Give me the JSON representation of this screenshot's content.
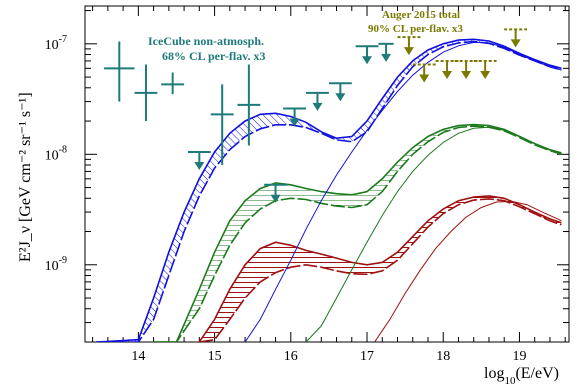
{
  "colors": {
    "blue": "#1010e0",
    "green": "#1c7a1c",
    "red": "#a01010",
    "teal": "#1f7a7a",
    "olive": "#7a7a00"
  },
  "axes": {
    "xlabel_main": "log",
    "xlabel_sub": "10",
    "xlabel_rest": "(E/eV)",
    "ylabel": "E²J_ν [GeV cm⁻² sr⁻¹ s⁻¹]",
    "xticks": [
      14,
      15,
      16,
      17,
      18,
      19
    ],
    "xtick_labels": [
      "14",
      "15",
      "16",
      "17",
      "18",
      "19"
    ],
    "ytick_labels": [
      {
        "base": "10",
        "exp": "-9",
        "value": 1e-09
      },
      {
        "base": "10",
        "exp": "-8",
        "value": 1e-08
      },
      {
        "base": "10",
        "exp": "-7",
        "value": 1e-07
      }
    ],
    "xlim": [
      13.3,
      19.65
    ],
    "ylim": [
      2e-10,
      2.2e-07
    ],
    "yscale": "log"
  },
  "annotations": {
    "icecube_line1": "IceCube non-atmosph.",
    "icecube_line2": "68% CL per-flav. x3",
    "auger_line1": "Auger 2015 total",
    "auger_line2": "90% CL per-flav. x3"
  },
  "chart_data": {
    "type": "line",
    "yscale": "log",
    "xlim": [
      13.3,
      19.65
    ],
    "ylim": [
      2e-10,
      2.2e-07
    ],
    "xlabel": "log10(E/eV)",
    "ylabel": "E^2 J_nu [GeV cm^-2 sr^-1 s^-1]",
    "series": [
      {
        "color": "blue",
        "band_upper": {
          "x": [
            13.45,
            14.0,
            14.2,
            14.4,
            14.6,
            14.8,
            15.0,
            15.2,
            15.4,
            15.6,
            15.8,
            16.0,
            16.2,
            16.4,
            16.6,
            16.8,
            17.0,
            17.2,
            17.4,
            17.6,
            17.8,
            18.0,
            18.2,
            18.4,
            18.6,
            18.8,
            19.0,
            19.2,
            19.4,
            19.55
          ],
          "y": [
            2e-10,
            2.1e-10,
            5e-10,
            1.3e-09,
            3e-09,
            6e-09,
            1.05e-08,
            1.55e-08,
            2e-08,
            2.3e-08,
            2.35e-08,
            2.2e-08,
            1.95e-08,
            1.6e-08,
            1.4e-08,
            1.45e-08,
            2e-08,
            3.2e-08,
            5e-08,
            7e-08,
            8.8e-08,
            1e-07,
            1.08e-07,
            1.1e-07,
            1.06e-07,
            9.5e-08,
            8.2e-08,
            7.2e-08,
            6.4e-08,
            6e-08
          ]
        },
        "band_lower": {
          "x": [
            13.45,
            14.0,
            14.2,
            14.4,
            14.6,
            14.8,
            15.0,
            15.2,
            15.4,
            15.6,
            15.8,
            16.0,
            16.2,
            16.4,
            16.6,
            16.8,
            17.0,
            17.2,
            17.4,
            17.6,
            17.8,
            18.0,
            18.2,
            18.4,
            18.6,
            18.8,
            19.0,
            19.2,
            19.4,
            19.55
          ],
          "y": [
            2e-10,
            2e-10,
            3.2e-10,
            8e-10,
            2e-09,
            4.2e-09,
            7.5e-09,
            1.1e-08,
            1.45e-08,
            1.7e-08,
            1.85e-08,
            1.85e-08,
            1.75e-08,
            1.55e-08,
            1.35e-08,
            1.3e-08,
            1.6e-08,
            2.6e-08,
            4.2e-08,
            6.2e-08,
            8e-08,
            9.4e-08,
            1.02e-07,
            1.05e-07,
            1.01e-07,
            9.1e-08,
            7.9e-08,
            7e-08,
            6.2e-08,
            5.8e-08
          ]
        },
        "component": {
          "x": [
            15.4,
            15.6,
            15.8,
            16.0,
            16.2,
            16.4,
            16.6,
            16.8,
            17.0,
            17.2,
            17.4,
            17.6,
            17.8,
            18.0,
            18.2,
            18.4,
            18.6,
            18.8,
            19.0,
            19.2,
            19.4,
            19.55
          ],
          "y": [
            2e-10,
            3.2e-10,
            6e-10,
            1.1e-09,
            2.1e-09,
            3.8e-09,
            6.5e-09,
            1.05e-08,
            1.65e-08,
            2.5e-08,
            3.7e-08,
            5.2e-08,
            6.8e-08,
            8.4e-08,
            9.6e-08,
            1.03e-07,
            1.02e-07,
            9.3e-08,
            8e-08,
            7e-08,
            6.2e-08,
            5.8e-08
          ]
        }
      },
      {
        "color": "green",
        "band_upper": {
          "x": [
            14.2,
            14.5,
            14.8,
            15.0,
            15.2,
            15.4,
            15.6,
            15.8,
            16.0,
            16.2,
            16.4,
            16.6,
            16.8,
            17.0,
            17.2,
            17.4,
            17.6,
            17.8,
            18.0,
            18.2,
            18.4,
            18.6,
            18.8,
            19.0,
            19.2,
            19.4,
            19.55
          ],
          "y": [
            2e-10,
            2e-10,
            6e-10,
            1.3e-09,
            2.5e-09,
            3.8e-09,
            4.9e-09,
            5.5e-09,
            5.3e-09,
            4.9e-09,
            4.6e-09,
            4.4e-09,
            4.3e-09,
            4.6e-09,
            6e-09,
            8.5e-09,
            1.15e-08,
            1.45e-08,
            1.68e-08,
            1.82e-08,
            1.86e-08,
            1.82e-08,
            1.68e-08,
            1.45e-08,
            1.25e-08,
            1.1e-08,
            1.03e-08
          ]
        },
        "band_lower": {
          "x": [
            14.2,
            14.5,
            14.8,
            15.0,
            15.2,
            15.4,
            15.6,
            15.8,
            16.0,
            16.2,
            16.4,
            16.6,
            16.8,
            17.0,
            17.2,
            17.4,
            17.6,
            17.8,
            18.0,
            18.2,
            18.4,
            18.6,
            18.8,
            19.0,
            19.2,
            19.4,
            19.55
          ],
          "y": [
            2e-10,
            2e-10,
            4e-10,
            8e-10,
            1.5e-09,
            2.4e-09,
            3.2e-09,
            3.8e-09,
            4e-09,
            3.9e-09,
            3.6e-09,
            3.4e-09,
            3.3e-09,
            3.5e-09,
            4.6e-09,
            7e-09,
            1e-08,
            1.3e-08,
            1.58e-08,
            1.75e-08,
            1.8e-08,
            1.76e-08,
            1.63e-08,
            1.42e-08,
            1.22e-08,
            1.08e-08,
            1e-08
          ]
        },
        "component": {
          "x": [
            16.2,
            16.4,
            16.6,
            16.8,
            17.0,
            17.2,
            17.4,
            17.6,
            17.8,
            18.0,
            18.2,
            18.4,
            18.6,
            18.8,
            19.0,
            19.2,
            19.4,
            19.55
          ],
          "y": [
            2e-10,
            2.8e-10,
            5e-10,
            9e-10,
            1.6e-09,
            2.8e-09,
            4.6e-09,
            7e-09,
            9.8e-09,
            1.28e-08,
            1.55e-08,
            1.72e-08,
            1.76e-08,
            1.66e-08,
            1.46e-08,
            1.25e-08,
            1.1e-08,
            1.02e-08
          ]
        }
      },
      {
        "color": "red",
        "band_upper": {
          "x": [
            14.8,
            15.0,
            15.2,
            15.4,
            15.6,
            15.8,
            16.0,
            16.2,
            16.4,
            16.6,
            16.8,
            17.0,
            17.2,
            17.4,
            17.6,
            17.8,
            18.0,
            18.2,
            18.4,
            18.6,
            18.8,
            19.0,
            19.2,
            19.4,
            19.55
          ],
          "y": [
            2e-10,
            3.2e-10,
            6e-10,
            1e-09,
            1.4e-09,
            1.6e-09,
            1.5e-09,
            1.35e-09,
            1.25e-09,
            1.15e-09,
            1.05e-09,
            1e-09,
            1.05e-09,
            1.3e-09,
            1.8e-09,
            2.5e-09,
            3.2e-09,
            3.8e-09,
            4.1e-09,
            4.2e-09,
            4e-09,
            3.5e-09,
            3e-09,
            2.6e-09,
            2.4e-09
          ]
        },
        "band_lower": {
          "x": [
            14.8,
            15.0,
            15.2,
            15.4,
            15.6,
            15.8,
            16.0,
            16.2,
            16.4,
            16.6,
            16.8,
            17.0,
            17.2,
            17.4,
            17.6,
            17.8,
            18.0,
            18.2,
            18.4,
            18.6,
            18.8,
            19.0,
            19.2,
            19.4,
            19.55
          ],
          "y": [
            2e-10,
            2.1e-10,
            3.2e-10,
            5e-10,
            7e-10,
            8.5e-10,
            9.5e-10,
            1e-09,
            9.5e-10,
            8.8e-10,
            8.3e-10,
            8.2e-10,
            8.8e-10,
            1.1e-09,
            1.55e-09,
            2.2e-09,
            2.9e-09,
            3.5e-09,
            3.85e-09,
            3.95e-09,
            3.8e-09,
            3.35e-09,
            2.9e-09,
            2.5e-09,
            2.3e-09
          ]
        },
        "component": {
          "x": [
            17.1,
            17.3,
            17.5,
            17.7,
            17.9,
            18.1,
            18.3,
            18.5,
            18.7,
            18.9,
            19.1,
            19.3,
            19.5,
            19.55
          ],
          "y": [
            2e-10,
            3.2e-10,
            5.5e-10,
            9e-10,
            1.4e-09,
            2e-09,
            2.7e-09,
            3.3e-09,
            3.7e-09,
            3.75e-09,
            3.5e-09,
            3e-09,
            2.6e-09,
            2.5e-09
          ]
        }
      }
    ],
    "icecube": {
      "points": [
        {
          "x": 13.75,
          "y": 6e-08,
          "ylo": 3e-08,
          "yhi": 1.05e-07,
          "xlo": 13.55,
          "xhi": 13.95
        },
        {
          "x": 14.1,
          "y": 3.6e-08,
          "ylo": 2e-08,
          "yhi": 6.5e-08,
          "xlo": 13.95,
          "xhi": 14.25
        },
        {
          "x": 14.45,
          "y": 4.3e-08,
          "ylo": 3.5e-08,
          "yhi": 5.5e-08,
          "xlo": 14.3,
          "xhi": 14.6
        },
        {
          "x": 15.1,
          "y": 2.3e-08,
          "ylo": 8e-09,
          "yhi": 4.3e-08,
          "xlo": 14.95,
          "xhi": 15.25
        },
        {
          "x": 15.45,
          "y": 2.8e-08,
          "ylo": 1.2e-08,
          "yhi": 6.5e-08,
          "xlo": 15.3,
          "xhi": 15.6
        }
      ],
      "upper_limits": [
        {
          "x": 14.8,
          "y": 1.05e-08,
          "xlo": 14.65,
          "xhi": 14.95
        },
        {
          "x": 15.8,
          "y": 5.3e-09,
          "xlo": 15.65,
          "xhi": 15.95
        },
        {
          "x": 16.05,
          "y": 2.6e-08,
          "xlo": 15.9,
          "xhi": 16.2
        },
        {
          "x": 16.35,
          "y": 3.6e-08,
          "xlo": 16.2,
          "xhi": 16.5
        },
        {
          "x": 16.65,
          "y": 4.4e-08,
          "xlo": 16.5,
          "xhi": 16.8
        },
        {
          "x": 17.0,
          "y": 9.5e-08,
          "xlo": 16.85,
          "xhi": 17.15
        },
        {
          "x": 17.25,
          "y": 1e-07,
          "xlo": 17.15,
          "xhi": 17.35
        }
      ]
    },
    "auger": {
      "upper_limits": [
        {
          "x": 17.55,
          "y": 1.15e-07,
          "xlo": 17.4,
          "xhi": 17.7
        },
        {
          "x": 17.75,
          "y": 6.5e-08,
          "xlo": 17.6,
          "xhi": 17.9
        },
        {
          "x": 18.05,
          "y": 7e-08,
          "xlo": 17.9,
          "xhi": 18.2
        },
        {
          "x": 18.3,
          "y": 7e-08,
          "xlo": 18.15,
          "xhi": 18.45
        },
        {
          "x": 18.55,
          "y": 7e-08,
          "xlo": 18.4,
          "xhi": 18.7
        },
        {
          "x": 18.95,
          "y": 1.35e-07,
          "xlo": 18.8,
          "xhi": 19.1
        }
      ]
    }
  }
}
